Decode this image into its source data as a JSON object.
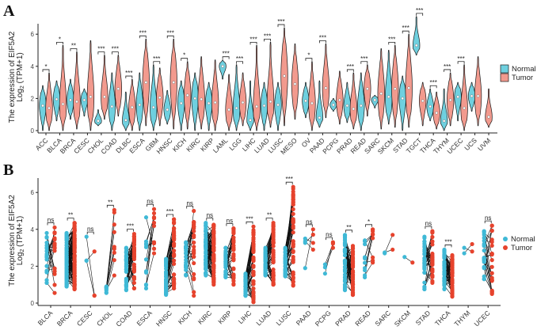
{
  "colors": {
    "normal_violin": "#6fd0df",
    "tumor_violin": "#f29a8e",
    "normal_point": "#3fb9d6",
    "tumor_point": "#e6432d",
    "outline": "#1a1a1a"
  },
  "chart_data": [
    {
      "panel": "A",
      "type": "violin",
      "ylabel_line1": "The expression of EIF5A2",
      "ylabel_line2_main": "Log",
      "ylabel_line2_sub": "2",
      "ylabel_line2_rest": " (TPM+1)",
      "ylim": [
        0,
        7.2
      ],
      "yticks": [
        "0",
        "2",
        "4",
        "6"
      ],
      "legend": {
        "position": "right",
        "entries": [
          "Normal",
          "Tumor"
        ]
      },
      "fields": "normal:[median,min,max], tumor:[median,min,max]",
      "categories": [
        {
          "name": "ACC",
          "normal": [
            1.55,
            0,
            2.8
          ],
          "tumor": [
            1.4,
            0,
            3.6
          ],
          "sig": "*"
        },
        {
          "name": "BLCA",
          "normal": [
            1.95,
            0.6,
            3.1
          ],
          "tumor": [
            1.65,
            0,
            5.3
          ],
          "sig": "*"
        },
        {
          "name": "BRCA",
          "normal": [
            1.9,
            0.7,
            3.2
          ],
          "tumor": [
            1.8,
            0.1,
            4.9
          ],
          "sig": "**"
        },
        {
          "name": "CESC",
          "normal": [
            1.9,
            0.9,
            2.6
          ],
          "tumor": [
            2.1,
            0,
            5.6
          ],
          "sig": ""
        },
        {
          "name": "CHOL",
          "normal": [
            0.6,
            0.3,
            1.3
          ],
          "tumor": [
            2.1,
            0.7,
            4.7
          ],
          "sig": "***"
        },
        {
          "name": "COAD",
          "normal": [
            1.5,
            0,
            3.6
          ],
          "tumor": [
            2.6,
            0.9,
            4.7
          ],
          "sig": "***"
        },
        {
          "name": "DLBC",
          "normal": [
            0.65,
            0,
            2.4
          ],
          "tumor": [
            1.45,
            0,
            3.2
          ],
          "sig": "***"
        },
        {
          "name": "ESCA",
          "normal": [
            1.6,
            0,
            3.6
          ],
          "tumor": [
            3.0,
            0.3,
            5.7
          ],
          "sig": "***"
        },
        {
          "name": "GBM",
          "normal": [
            1.45,
            0,
            4.1
          ],
          "tumor": [
            2.05,
            0.3,
            3.9
          ],
          "sig": "***"
        },
        {
          "name": "HNSC",
          "normal": [
            1.3,
            0.4,
            2.5
          ],
          "tumor": [
            3.0,
            0.1,
            5.7
          ],
          "sig": "***"
        },
        {
          "name": "KICH",
          "normal": [
            1.7,
            0,
            3.1
          ],
          "tumor": [
            2.2,
            0.1,
            4.3
          ],
          "sig": "*"
        },
        {
          "name": "KIRC",
          "normal": [
            2.0,
            0,
            3.6
          ],
          "tumor": [
            1.95,
            0.1,
            4.6
          ],
          "sig": ""
        },
        {
          "name": "KIRP",
          "normal": [
            1.7,
            0,
            3.0
          ],
          "tumor": [
            1.75,
            0,
            4.4
          ],
          "sig": ""
        },
        {
          "name": "LAML",
          "normal": [
            4.0,
            3.2,
            4.4
          ],
          "tumor": [
            1.3,
            0,
            3.5
          ],
          "sig": "***"
        },
        {
          "name": "LGG",
          "normal": [
            1.4,
            0,
            4.1
          ],
          "tumor": [
            1.75,
            0.3,
            3.6
          ],
          "sig": "***"
        },
        {
          "name": "LIHC",
          "normal": [
            0.65,
            0,
            3.1
          ],
          "tumor": [
            1.5,
            0,
            5.3
          ],
          "sig": "***"
        },
        {
          "name": "LUAD",
          "normal": [
            1.55,
            0,
            3.0
          ],
          "tumor": [
            1.8,
            0.2,
            5.5
          ],
          "sig": "***"
        },
        {
          "name": "LUSC",
          "normal": [
            1.6,
            0,
            3.0
          ],
          "tumor": [
            3.4,
            0.3,
            6.4
          ],
          "sig": "***"
        },
        {
          "name": "MESO",
          "normal": null,
          "tumor": [
            2.9,
            0.7,
            5.4
          ],
          "sig": ""
        },
        {
          "name": "OV",
          "normal": [
            1.85,
            0.8,
            3.0
          ],
          "tumor": [
            1.7,
            0,
            4.3
          ],
          "sig": "*"
        },
        {
          "name": "PAAD",
          "normal": [
            0.8,
            0.2,
            3.1
          ],
          "tumor": [
            2.65,
            0.8,
            5.4
          ],
          "sig": "***"
        },
        {
          "name": "PCPG",
          "normal": [
            1.6,
            1.2,
            2.0
          ],
          "tumor": [
            1.9,
            0.4,
            3.7
          ],
          "sig": ""
        },
        {
          "name": "PRAD",
          "normal": [
            1.55,
            0.5,
            3.0
          ],
          "tumor": [
            1.35,
            0.1,
            3.6
          ],
          "sig": "***"
        },
        {
          "name": "READ",
          "normal": [
            1.55,
            0,
            3.6
          ],
          "tumor": [
            2.6,
            0.9,
            4.1
          ],
          "sig": "***"
        },
        {
          "name": "SARC",
          "normal": [
            1.9,
            1.4,
            2.2
          ],
          "tumor": [
            2.3,
            0.1,
            5.1
          ],
          "sig": ""
        },
        {
          "name": "SKCM",
          "normal": [
            2.1,
            0.4,
            5.0
          ],
          "tumor": [
            2.6,
            0.2,
            5.3
          ],
          "sig": "***"
        },
        {
          "name": "STAD",
          "normal": [
            2.0,
            0,
            3.4
          ],
          "tumor": [
            2.65,
            0.2,
            6.0
          ],
          "sig": "***"
        },
        {
          "name": "TGCT",
          "normal": [
            5.3,
            4.7,
            7.1
          ],
          "tumor": [
            1.85,
            0.3,
            3.0
          ],
          "sig": "***"
        },
        {
          "name": "THCA",
          "normal": [
            1.5,
            0.6,
            2.6
          ],
          "tumor": [
            1.1,
            0.1,
            2.4
          ],
          "sig": "***"
        },
        {
          "name": "THYM",
          "normal": [
            0.6,
            0,
            2.6
          ],
          "tumor": [
            1.9,
            0.3,
            3.6
          ],
          "sig": "***"
        },
        {
          "name": "UCEC",
          "normal": [
            2.1,
            0.6,
            3.0
          ],
          "tumor": [
            1.4,
            0,
            4.1
          ],
          "sig": "***"
        },
        {
          "name": "UCS",
          "normal": [
            2.15,
            1.2,
            3.0
          ],
          "tumor": [
            2.15,
            0.3,
            4.6
          ],
          "sig": ""
        },
        {
          "name": "UVM",
          "normal": null,
          "tumor": [
            0.85,
            0.2,
            2.6
          ],
          "sig": ""
        }
      ]
    },
    {
      "panel": "B",
      "type": "paired-scatter",
      "ylabel_line1": "The expression of EIF5A2",
      "ylabel_line2_main": "Log",
      "ylabel_line2_sub": "2",
      "ylabel_line2_rest": " (TPM+1)",
      "ylim": [
        0,
        6.9
      ],
      "yticks": [
        "0",
        "2",
        "4",
        "6"
      ],
      "legend": {
        "position": "right",
        "entries": [
          "Normal",
          "Tumor"
        ]
      },
      "fields": "n_pairs, normal:[min,max], tumor:[min,max]",
      "categories": [
        {
          "name": "BLCA",
          "n": 19,
          "normal": [
            1.1,
            3.8
          ],
          "tumor": [
            0.55,
            4.1
          ],
          "sig": "ns"
        },
        {
          "name": "BRCA",
          "n": 110,
          "normal": [
            0.9,
            3.8
          ],
          "tumor": [
            0.75,
            4.35
          ],
          "sig": "**"
        },
        {
          "name": "CESC",
          "n": 3,
          "normal": [
            2.3,
            3.6
          ],
          "tumor": [
            0.4,
            2.8
          ],
          "sig": "ns"
        },
        {
          "name": "CHOL",
          "n": 9,
          "normal": [
            0.55,
            0.9
          ],
          "tumor": [
            1.5,
            5.05
          ],
          "sig": "**"
        },
        {
          "name": "COAD",
          "n": 41,
          "normal": [
            0.7,
            3.0
          ],
          "tumor": [
            0.8,
            3.75
          ],
          "sig": "***"
        },
        {
          "name": "ESCA",
          "n": 11,
          "normal": [
            0.8,
            4.65
          ],
          "tumor": [
            2.7,
            5.1
          ],
          "sig": "ns"
        },
        {
          "name": "HNSC",
          "n": 43,
          "normal": [
            0.45,
            2.4
          ],
          "tumor": [
            0.8,
            4.55
          ],
          "sig": "***"
        },
        {
          "name": "KICH",
          "n": 25,
          "normal": [
            1.5,
            3.3
          ],
          "tumor": [
            0.4,
            5.0
          ],
          "sig": "ns"
        },
        {
          "name": "KIRC",
          "n": 72,
          "normal": [
            1.5,
            4.35
          ],
          "tumor": [
            1.0,
            4.25
          ],
          "sig": "ns"
        },
        {
          "name": "KIRP",
          "n": 32,
          "normal": [
            1.4,
            3.0
          ],
          "tumor": [
            1.0,
            4.05
          ],
          "sig": "ns"
        },
        {
          "name": "LIHC",
          "n": 50,
          "normal": [
            0.4,
            1.6
          ],
          "tumor": [
            0.05,
            4.15
          ],
          "sig": "***"
        },
        {
          "name": "LUAD",
          "n": 57,
          "normal": [
            1.5,
            3.0
          ],
          "tumor": [
            1.0,
            4.35
          ],
          "sig": "**"
        },
        {
          "name": "LUSC",
          "n": 49,
          "normal": [
            1.45,
            3.0
          ],
          "tumor": [
            0.95,
            6.3
          ],
          "sig": "***"
        },
        {
          "name": "PAAD",
          "n": 4,
          "normal": [
            1.9,
            3.5
          ],
          "tumor": [
            2.9,
            4.0
          ],
          "sig": "ns"
        },
        {
          "name": "PCPG",
          "n": 3,
          "normal": [
            1.6,
            2.1
          ],
          "tumor": [
            3.0,
            3.3
          ],
          "sig": "ns"
        },
        {
          "name": "PRAD",
          "n": 52,
          "normal": [
            0.7,
            3.7
          ],
          "tumor": [
            0.45,
            3.1
          ],
          "sig": "**"
        },
        {
          "name": "READ",
          "n": 10,
          "normal": [
            1.4,
            3.4
          ],
          "tumor": [
            2.2,
            4.0
          ],
          "sig": "*"
        },
        {
          "name": "SARC",
          "n": 2,
          "normal": [
            2.7,
            2.75
          ],
          "tumor": [
            2.9,
            3.7
          ],
          "sig": ""
        },
        {
          "name": "SKCM",
          "n": 1,
          "normal": [
            2.5,
            2.5
          ],
          "tumor": [
            2.2,
            2.2
          ],
          "sig": ""
        },
        {
          "name": "STAD",
          "n": 32,
          "normal": [
            0.75,
            3.6
          ],
          "tumor": [
            1.1,
            3.9
          ],
          "sig": "ns"
        },
        {
          "name": "THCA",
          "n": 58,
          "normal": [
            0.75,
            2.9
          ],
          "tumor": [
            0.35,
            2.6
          ],
          "sig": "***"
        },
        {
          "name": "THYM",
          "n": 2,
          "normal": [
            2.7,
            3.0
          ],
          "tumor": [
            2.8,
            3.2
          ],
          "sig": ""
        },
        {
          "name": "UCEC",
          "n": 23,
          "normal": [
            1.3,
            3.9
          ],
          "tumor": [
            0.5,
            4.2
          ],
          "sig": "ns"
        }
      ]
    }
  ]
}
